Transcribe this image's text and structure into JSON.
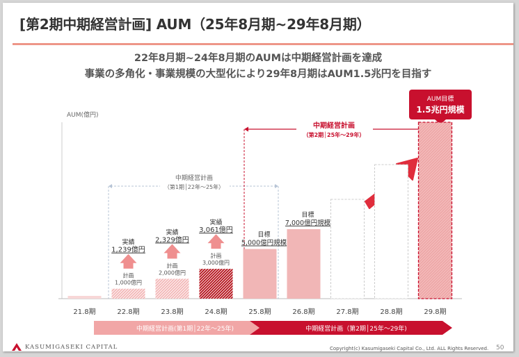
{
  "slide": {
    "title": "[第2期中期経営計画] AUM（25年8月期~29年8月期）",
    "subtitle_line1": "22年8月期~24年8月期のAUMは中期経営計画を達成",
    "subtitle_line2": "事業の多角化・事業規模の大型化により29年8月期はAUM1.5兆円を目指す"
  },
  "chart_data": {
    "type": "bar",
    "ylabel": "AUM(億円)",
    "categories": [
      "21.8期",
      "22.8期",
      "23.8期",
      "24.8期",
      "25.8期",
      "26.8期",
      "27.8期",
      "28.8期",
      "29.8期"
    ],
    "series": [
      {
        "name": "",
        "values": [
          null,
          1000,
          2000,
          3000,
          5000,
          7000,
          null,
          null,
          15000
        ]
      }
    ],
    "actuals": [
      {
        "category": "22.8期",
        "label": "実績",
        "value_text": "1,239億円"
      },
      {
        "category": "23.8期",
        "label": "実績",
        "value_text": "2,329億円"
      },
      {
        "category": "24.8期",
        "label": "実績",
        "value_text": "3,061億円"
      }
    ],
    "plans": [
      {
        "category": "22.8期",
        "label": "計画",
        "value_text": "1,000億円"
      },
      {
        "category": "23.8期",
        "label": "計画",
        "value_text": "2,000億円"
      },
      {
        "category": "24.8期",
        "label": "計画",
        "value_text": "3,000億円"
      }
    ],
    "targets": [
      {
        "category": "25.8期",
        "label": "目標",
        "value_text": "5,000億円規模"
      },
      {
        "category": "26.8期",
        "label": "目標",
        "value_text": "7,000億円規模"
      }
    ],
    "callout": {
      "label": "AUM目標",
      "value_text": "1.5兆円規模"
    },
    "plan1_bracket": {
      "line1": "中期経営計画",
      "line2": "（第1期│22年～25年）"
    },
    "plan2_bracket": {
      "line1": "中期経営計画",
      "line2": "（第2期│25年～29年）"
    },
    "bottom_band": {
      "plan1": "中期経営計画(第1期│22年～25年)",
      "plan2": "中期経営計画（第2期│25年～29年)"
    },
    "colors": {
      "accent_red": "#c8102e",
      "pink": "#f1b6b6",
      "light_pink": "#f8d7d7",
      "title_rule": "#ee9688",
      "arrow": "#e02d3c",
      "up_arrow": "#ef8f8f"
    }
  },
  "footer": {
    "logo_text": "KASUMIGASEKI CAPITAL",
    "copyright": "Copyright(c) Kasumigaseki Capital Co., Ltd. ALL Rights Reserved.",
    "page": "50"
  }
}
